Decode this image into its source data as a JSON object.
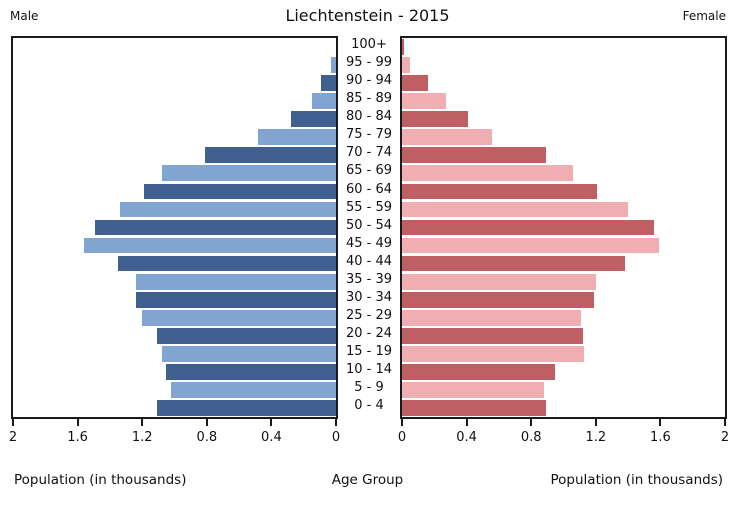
{
  "header": {
    "title": "Liechtenstein - 2015",
    "left_label": "Male",
    "right_label": "Female"
  },
  "footer": {
    "left_axis_title": "Population (in thousands)",
    "center_axis_title": "Age Group",
    "right_axis_title": "Population (in thousands)"
  },
  "colors": {
    "male_dark": "#40618f",
    "male_light": "#82a4d0",
    "female_dark": "#c05f63",
    "female_light": "#f0aeb2",
    "axis": "#1a1a1a"
  },
  "chart_data": {
    "type": "bar",
    "subtype": "population-pyramid",
    "title": "Liechtenstein - 2015",
    "xlabel_left": "Population (in thousands)",
    "xlabel_right": "Population (in thousands)",
    "center_label": "Age Group",
    "unit": "thousands",
    "axis_max": 2,
    "x_ticks_male": [
      "2",
      "1.6",
      "1.2",
      "0.8",
      "0.4",
      "0"
    ],
    "x_ticks_female": [
      "0",
      "0.4",
      "0.8",
      "1.2",
      "1.6",
      "2"
    ],
    "categories": [
      "100+",
      "95 - 99",
      "90 - 94",
      "85 - 89",
      "80 - 84",
      "75 - 79",
      "70 - 74",
      "65 - 69",
      "60 - 64",
      "55 - 59",
      "50 - 54",
      "45 - 49",
      "40 - 44",
      "35 - 39",
      "30 - 34",
      "25 - 29",
      "20 - 24",
      "15 - 19",
      "10 - 14",
      "5 - 9",
      "0 - 4"
    ],
    "series": [
      {
        "name": "Male",
        "side": "left",
        "values": [
          0.0,
          0.03,
          0.09,
          0.15,
          0.28,
          0.48,
          0.81,
          1.08,
          1.19,
          1.34,
          1.49,
          1.56,
          1.35,
          1.24,
          1.24,
          1.2,
          1.11,
          1.08,
          1.05,
          1.02,
          1.11
        ]
      },
      {
        "name": "Female",
        "side": "right",
        "values": [
          0.01,
          0.05,
          0.16,
          0.27,
          0.41,
          0.56,
          0.89,
          1.06,
          1.21,
          1.4,
          1.56,
          1.59,
          1.38,
          1.2,
          1.19,
          1.11,
          1.12,
          1.13,
          0.95,
          0.88,
          0.89
        ]
      }
    ],
    "legend": "none",
    "grid": false
  }
}
